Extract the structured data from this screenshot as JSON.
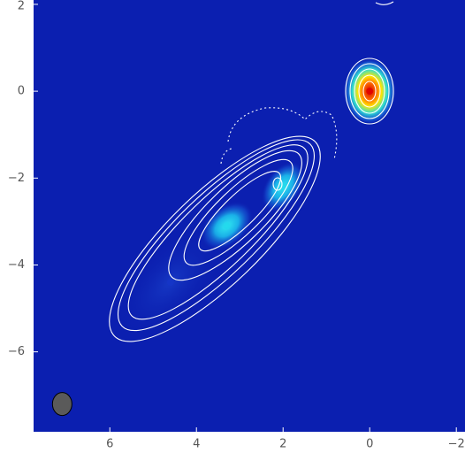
{
  "chart_data": {
    "type": "image",
    "xlim": [
      7.76,
      -2.2
    ],
    "ylim": [
      -7.84,
      2.1
    ],
    "xticks": [
      6,
      4,
      2,
      0,
      {
        "value": -2,
        "label": "−2"
      }
    ],
    "yticks": [
      2,
      0,
      {
        "value": -2,
        "label": "−2"
      },
      {
        "value": -4,
        "label": "−4"
      },
      {
        "value": -6,
        "label": "−6"
      }
    ],
    "background_color": "#0b1fb0",
    "sources": [
      {
        "x": 0,
        "y": 0,
        "color": "#e00000"
      },
      {
        "x": 2.0,
        "y": -2.2,
        "color": "#22d8ec"
      },
      {
        "x": 3.3,
        "y": -3.1,
        "color": "#22d8ec"
      },
      {
        "x": 4.6,
        "y": -4.4,
        "color": "#1535c8"
      }
    ],
    "beam": {
      "x": 7.1,
      "y": -7.2,
      "color": "#5a5a5a"
    }
  }
}
